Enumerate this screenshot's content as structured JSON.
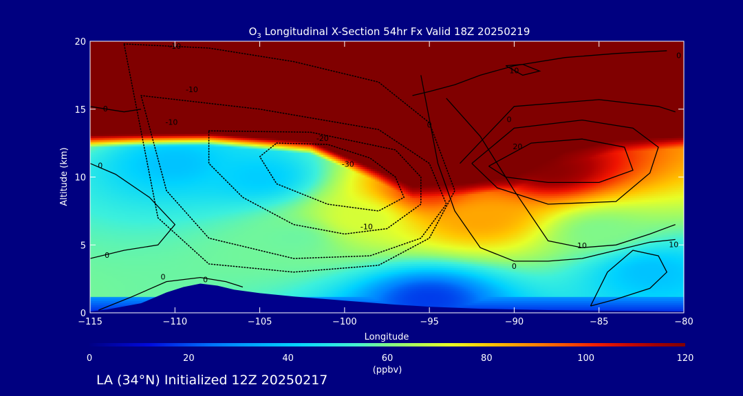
{
  "chart_data": {
    "type": "heatmap",
    "title": {
      "prefix": "O",
      "subscript": "3",
      "main": " Longitudinal X-Section 54hr  Fx Valid 18Z 20250219"
    },
    "xlabel": "Longitude",
    "ylabel": "Altitude (km)",
    "xlim": [
      -115,
      -80
    ],
    "ylim": [
      0,
      20
    ],
    "x_ticks": [
      -115,
      -110,
      -105,
      -100,
      -95,
      -90,
      -85,
      -80
    ],
    "x_tick_labels": [
      "−115",
      "−110",
      "−105",
      "−100",
      "−95",
      "−90",
      "−85",
      "−80"
    ],
    "y_ticks": [
      0,
      5,
      10,
      15,
      20
    ],
    "y_tick_labels": [
      "0",
      "5",
      "10",
      "15",
      "20"
    ],
    "colorbar": {
      "min": 0,
      "max": 120,
      "ticks": [
        0,
        20,
        40,
        60,
        80,
        100,
        120
      ],
      "tick_labels": [
        "0",
        "20",
        "40",
        "60",
        "80",
        "100",
        "120"
      ],
      "unit": "(ppbv)"
    },
    "colors": {
      "background": "#000080",
      "terrain": "#00008b",
      "contour": "#000000",
      "text": "#ffffff"
    },
    "field_description_points": [
      {
        "lon": -115,
        "alt": 17,
        "value": 120
      },
      {
        "lon": -110,
        "alt": 11,
        "value": 38
      },
      {
        "lon": -105,
        "alt": 10,
        "value": 40
      },
      {
        "lon": -103,
        "alt": 5.5,
        "value": 58
      },
      {
        "lon": -99,
        "alt": 7,
        "value": 70
      },
      {
        "lon": -95,
        "alt": 9,
        "value": 100
      },
      {
        "lon": -92,
        "alt": 7,
        "value": 85
      },
      {
        "lon": -88,
        "alt": 10.5,
        "value": 118
      },
      {
        "lon": -85,
        "alt": 6,
        "value": 60
      },
      {
        "lon": -82,
        "alt": 3,
        "value": 38
      },
      {
        "lon": -95,
        "alt": 1,
        "value": 18
      }
    ],
    "terrain_profile": {
      "lon": [
        -115,
        -114,
        -112,
        -110.5,
        -109.5,
        -108.5,
        -107.5,
        -106.5,
        -105,
        -103,
        -100,
        -97,
        -95,
        -92,
        -88,
        -84,
        -80
      ],
      "alt": [
        0.1,
        0.25,
        0.7,
        1.5,
        1.9,
        2.15,
        2.0,
        1.7,
        1.45,
        1.2,
        0.9,
        0.6,
        0.45,
        0.3,
        0.2,
        0.15,
        0.1
      ]
    },
    "contours": [
      {
        "value": "-30",
        "style": "dotted",
        "lon": [
          -104,
          -101,
          -98.5,
          -97,
          -96.5,
          -98,
          -101,
          -104,
          -105,
          -104
        ],
        "alt": [
          12.5,
          12.4,
          11.4,
          10.0,
          8.5,
          7.5,
          8.0,
          9.5,
          11.5,
          12.5
        ]
      },
      {
        "value": "-20",
        "style": "dotted",
        "lon": [
          -108,
          -102,
          -97,
          -95.5,
          -95.5,
          -97.5,
          -100,
          -103,
          -106,
          -108,
          -108
        ],
        "alt": [
          13.4,
          13.3,
          12.0,
          10.0,
          8.0,
          6.2,
          5.8,
          6.5,
          8.5,
          11.0,
          13.4
        ]
      },
      {
        "value": "-10",
        "style": "dotted",
        "lon": [
          -112,
          -105,
          -98,
          -95,
          -94,
          -95.5,
          -98.5,
          -103,
          -108,
          -110.5,
          -112
        ],
        "alt": [
          16.0,
          15.0,
          13.5,
          11.0,
          8.0,
          5.5,
          4.2,
          4.0,
          5.5,
          9.0,
          16.0
        ]
      },
      {
        "value": "-10",
        "style": "dotted",
        "lon": [
          -113,
          -108,
          -103,
          -98,
          -95,
          -93.5,
          -95,
          -98,
          -103,
          -108,
          -111,
          -113
        ],
        "alt": [
          19.8,
          19.5,
          18.5,
          17.0,
          14.0,
          9.0,
          5.5,
          3.5,
          3.0,
          3.6,
          7.0,
          19.8
        ]
      },
      {
        "value": "0",
        "style": "solid",
        "lon": [
          -115,
          -113.5,
          -111.5,
          -110,
          -111,
          -113,
          -115
        ],
        "alt": [
          11.0,
          10.2,
          8.5,
          6.5,
          5.0,
          4.6,
          4.0
        ]
      },
      {
        "value": "0",
        "style": "solid",
        "lon": [
          -114.5,
          -112.5,
          -110.5,
          -108.5,
          -107,
          -106
        ],
        "alt": [
          0.2,
          1.2,
          2.3,
          2.6,
          2.3,
          1.9
        ]
      },
      {
        "value": "0",
        "style": "solid",
        "lon": [
          -115,
          -114,
          -113,
          -112
        ],
        "alt": [
          15.2,
          15.0,
          14.8,
          15.0
        ]
      },
      {
        "value": "0",
        "style": "solid",
        "lon": [
          -95.5,
          -94.5,
          -93.5,
          -92,
          -90,
          -88,
          -86,
          -84,
          -82,
          -80.5
        ],
        "alt": [
          17.5,
          11.0,
          7.5,
          4.8,
          3.8,
          3.8,
          4.0,
          4.6,
          5.2,
          5.4
        ]
      },
      {
        "value": "0",
        "style": "solid",
        "lon": [
          -96,
          -95,
          -93.5,
          -92,
          -90,
          -87,
          -84,
          -81
        ],
        "alt": [
          16.0,
          16.3,
          16.8,
          17.5,
          18.2,
          18.8,
          19.1,
          19.3
        ]
      },
      {
        "value": "10",
        "style": "solid",
        "lon": [
          -94,
          -92,
          -90,
          -88,
          -86,
          -84,
          -82,
          -80.5
        ],
        "alt": [
          15.8,
          13.0,
          9.0,
          5.3,
          4.8,
          5.0,
          5.8,
          6.5
        ]
      },
      {
        "value": "10",
        "style": "solid",
        "lon": [
          -85.5,
          -84,
          -82,
          -81,
          -81.5,
          -83,
          -84.5,
          -85.5
        ],
        "alt": [
          0.5,
          1.0,
          1.8,
          3.0,
          4.2,
          4.6,
          3.0,
          0.5
        ]
      },
      {
        "value": "10",
        "style": "solid",
        "lon": [
          -90.5,
          -89.5,
          -88.5,
          -89.5,
          -90.5
        ],
        "alt": [
          18.2,
          18.3,
          17.8,
          17.5,
          18.2
        ]
      },
      {
        "value": "20",
        "style": "solid",
        "lon": [
          -91.5,
          -89,
          -86,
          -83.5,
          -83,
          -85,
          -88,
          -90.5,
          -91.5
        ],
        "alt": [
          10.8,
          12.5,
          12.8,
          12.2,
          10.5,
          9.6,
          9.6,
          10.0,
          10.8
        ]
      },
      {
        "value": "20",
        "style": "solid",
        "lon": [
          -92.5,
          -90,
          -86,
          -83,
          -81.5,
          -82,
          -84,
          -88,
          -91,
          -92.5
        ],
        "alt": [
          11.0,
          13.6,
          14.2,
          13.6,
          12.2,
          10.3,
          8.2,
          8.0,
          9.2,
          11.0
        ]
      },
      {
        "value": "20",
        "style": "solid",
        "lon": [
          -93.2,
          -90,
          -85,
          -81.5,
          -80.5
        ],
        "alt": [
          11.0,
          15.2,
          15.7,
          15.2,
          14.8
        ]
      }
    ],
    "contour_labels": [
      {
        "lon": -110,
        "alt": 19.6,
        "text": "-10"
      },
      {
        "lon": -109,
        "alt": 16.4,
        "text": "-10"
      },
      {
        "lon": -110.2,
        "alt": 14.0,
        "text": "-10"
      },
      {
        "lon": -101.3,
        "alt": 12.8,
        "text": "-20"
      },
      {
        "lon": -99.8,
        "alt": 10.9,
        "text": "-30"
      },
      {
        "lon": -98.7,
        "alt": 6.3,
        "text": "-10"
      },
      {
        "lon": -114.4,
        "alt": 10.8,
        "text": "0"
      },
      {
        "lon": -114,
        "alt": 4.2,
        "text": "0"
      },
      {
        "lon": -110.7,
        "alt": 2.6,
        "text": "0"
      },
      {
        "lon": -108.2,
        "alt": 2.4,
        "text": "0"
      },
      {
        "lon": -114.1,
        "alt": 15.0,
        "text": "0"
      },
      {
        "lon": -95,
        "alt": 13.8,
        "text": "0"
      },
      {
        "lon": -90,
        "alt": 3.4,
        "text": "0"
      },
      {
        "lon": -90.3,
        "alt": 14.2,
        "text": "0"
      },
      {
        "lon": -80.3,
        "alt": 18.9,
        "text": "0"
      },
      {
        "lon": -90,
        "alt": 17.8,
        "text": "10"
      },
      {
        "lon": -86,
        "alt": 4.9,
        "text": "10"
      },
      {
        "lon": -80.6,
        "alt": 5.0,
        "text": "10"
      },
      {
        "lon": -89.8,
        "alt": 12.2,
        "text": "20"
      }
    ]
  },
  "footer": {
    "text": "LA (34°N) Initialized 12Z 20250217"
  }
}
